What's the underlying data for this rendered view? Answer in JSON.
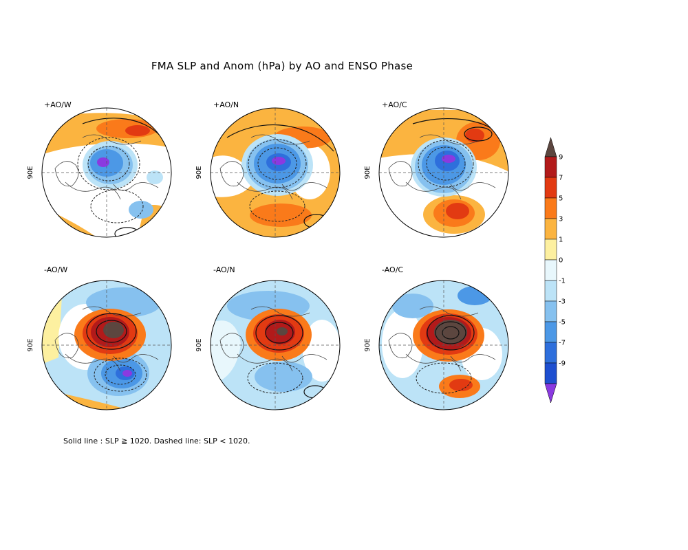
{
  "title": "FMA SLP and Anom (hPa) by AO and ENSO Phase",
  "footnote": "Solid line : SLP ≧ 1020.  Dashed line: SLP < 1020.",
  "lon_label": "90E",
  "panels": [
    {
      "label": "+AO/W",
      "ao": "+",
      "enso": "W"
    },
    {
      "label": "+AO/N",
      "ao": "+",
      "enso": "N"
    },
    {
      "label": "+AO/C",
      "ao": "+",
      "enso": "C"
    },
    {
      "label": "-AO/W",
      "ao": "-",
      "enso": "W"
    },
    {
      "label": "-AO/N",
      "ao": "-",
      "enso": "N"
    },
    {
      "label": "-AO/C",
      "ao": "-",
      "enso": "C"
    }
  ],
  "colorbar": {
    "ticks": [
      "9",
      "7",
      "5",
      "3",
      "1",
      "0",
      "-1",
      "-3",
      "-5",
      "-7",
      "-9"
    ],
    "colors": [
      "#5c463f",
      "#b21a1a",
      "#e23a12",
      "#fa7a1a",
      "#fbb440",
      "#fdf0a0",
      "#e8f7fc",
      "#bce3f7",
      "#86c1ef",
      "#4c98e6",
      "#2e6fdc",
      "#1e4fd0",
      "#8a3ae0"
    ]
  }
}
